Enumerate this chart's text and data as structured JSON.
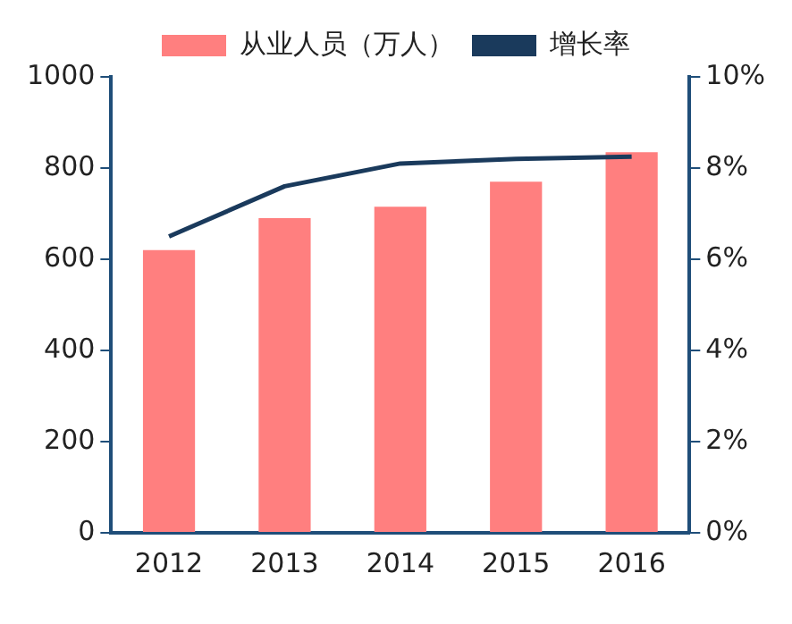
{
  "chart_data": {
    "type": "bar",
    "categories": [
      "2012",
      "2013",
      "2014",
      "2015",
      "2016"
    ],
    "series": [
      {
        "name": "从业人员（万人）",
        "color": "#ff7f7f",
        "values": [
          620,
          690,
          715,
          770,
          835
        ]
      },
      {
        "name": "增长率",
        "type": "line",
        "axis": "y2",
        "color": "#1a3a5c",
        "values": [
          6.5,
          7.6,
          8.1,
          8.2,
          8.25
        ]
      }
    ],
    "ylim": [
      0,
      1000
    ],
    "yticks": [
      0,
      200,
      400,
      600,
      800,
      1000
    ],
    "y2lim": [
      0,
      10
    ],
    "y2ticks": [
      {
        "value": 0,
        "label": "0%"
      },
      {
        "value": 2,
        "label": "2%"
      },
      {
        "value": 4,
        "label": "4%"
      },
      {
        "value": 6,
        "label": "6%"
      },
      {
        "value": 8,
        "label": "8%"
      },
      {
        "value": 10,
        "label": "10%"
      }
    ],
    "grid": false,
    "legend": "top",
    "marker": "none"
  }
}
